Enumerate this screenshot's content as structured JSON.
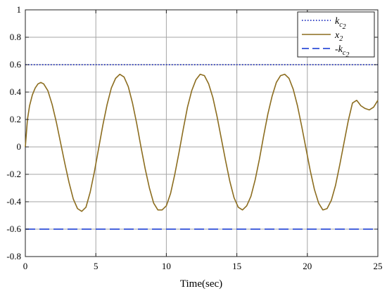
{
  "chart_data": {
    "type": "line",
    "title": "",
    "xlabel": "Time(sec)",
    "ylabel": "",
    "xlim": [
      0,
      25
    ],
    "ylim": [
      -0.8,
      1
    ],
    "grid": true,
    "legend_position": "top-right",
    "x_ticks": [
      0,
      5,
      10,
      15,
      20,
      25
    ],
    "x_tick_labels": [
      "0",
      "5",
      "10",
      "15",
      "20",
      "25"
    ],
    "y_ticks": [
      -0.8,
      -0.6,
      -0.4,
      -0.2,
      0,
      0.2,
      0.4,
      0.6,
      0.8,
      1
    ],
    "y_tick_labels": [
      "-0.8",
      "-0.6",
      "-0.4",
      "-0.2",
      "0",
      "0.2",
      "0.4",
      "0.6",
      "0.8",
      "1"
    ],
    "series": [
      {
        "name": "k_{c_2}",
        "legend_main": "k",
        "legend_sub": "c",
        "legend_subsub": "2",
        "style": "dotted",
        "color": "#1f2fbf",
        "x": [
          0,
          25
        ],
        "y": [
          0.6,
          0.6
        ]
      },
      {
        "name": "x_2",
        "legend_main": "x",
        "legend_sub": "2",
        "style": "solid",
        "color": "#8c6d1f",
        "x": [
          0,
          0.15,
          0.3,
          0.5,
          0.7,
          0.9,
          1.1,
          1.3,
          1.6,
          1.9,
          2.2,
          2.5,
          2.8,
          3.1,
          3.4,
          3.7,
          4.0,
          4.3,
          4.6,
          4.9,
          5.2,
          5.5,
          5.8,
          6.1,
          6.4,
          6.7,
          7.0,
          7.3,
          7.6,
          7.9,
          8.2,
          8.5,
          8.8,
          9.1,
          9.4,
          9.7,
          10.0,
          10.3,
          10.6,
          10.9,
          11.2,
          11.5,
          11.8,
          12.1,
          12.4,
          12.7,
          13.0,
          13.3,
          13.6,
          13.9,
          14.2,
          14.5,
          14.8,
          15.1,
          15.4,
          15.7,
          16.0,
          16.3,
          16.6,
          16.9,
          17.2,
          17.5,
          17.8,
          18.1,
          18.4,
          18.7,
          19.0,
          19.3,
          19.6,
          19.9,
          20.2,
          20.5,
          20.8,
          21.1,
          21.4,
          21.7,
          22.0,
          22.3,
          22.6,
          22.9,
          23.2,
          23.5,
          23.8,
          24.1,
          24.4,
          24.7,
          25.0
        ],
        "y": [
          0.0,
          0.2,
          0.3,
          0.38,
          0.43,
          0.46,
          0.47,
          0.46,
          0.41,
          0.31,
          0.18,
          0.03,
          -0.12,
          -0.26,
          -0.38,
          -0.45,
          -0.47,
          -0.44,
          -0.33,
          -0.18,
          -0.01,
          0.16,
          0.31,
          0.43,
          0.5,
          0.53,
          0.51,
          0.44,
          0.32,
          0.17,
          0.0,
          -0.16,
          -0.3,
          -0.41,
          -0.46,
          -0.46,
          -0.43,
          -0.34,
          -0.2,
          -0.04,
          0.13,
          0.29,
          0.41,
          0.49,
          0.53,
          0.52,
          0.46,
          0.36,
          0.22,
          0.06,
          -0.1,
          -0.25,
          -0.37,
          -0.44,
          -0.46,
          -0.43,
          -0.36,
          -0.24,
          -0.09,
          0.08,
          0.24,
          0.37,
          0.47,
          0.52,
          0.53,
          0.5,
          0.42,
          0.3,
          0.15,
          -0.01,
          -0.17,
          -0.31,
          -0.41,
          -0.46,
          -0.45,
          -0.39,
          -0.28,
          -0.13,
          0.03,
          0.19,
          0.32,
          0.34,
          0.3,
          0.28,
          0.27,
          0.29,
          0.34
        ]
      },
      {
        "name": "-k_{c_2}",
        "legend_main": "-k",
        "legend_sub": "c",
        "legend_subsub": "2",
        "style": "dashed",
        "color": "#2e4ed8",
        "x": [
          0,
          25
        ],
        "y": [
          -0.6,
          -0.6
        ]
      }
    ]
  }
}
